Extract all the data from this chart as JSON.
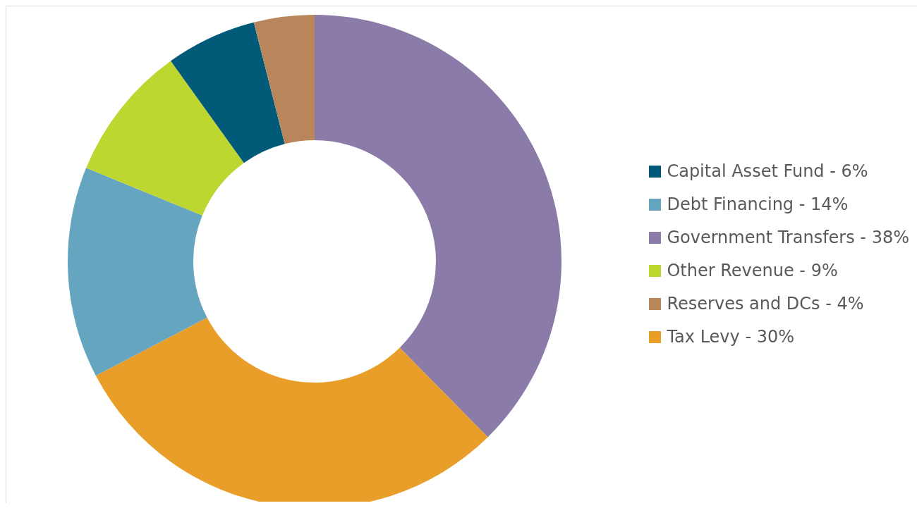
{
  "chart_data": {
    "type": "donut",
    "categories": [
      "Government Transfers - 38%",
      "Tax Levy - 30%",
      "Debt Financing - 14%",
      "Other Revenue - 9%",
      "Capital Asset Fund - 6%",
      "Reserves and DCs - 4%"
    ],
    "values": [
      38,
      30,
      14,
      9,
      6,
      4
    ],
    "colors": [
      "#8b7ba8",
      "#e99e2a",
      "#66a5bf",
      "#bed630",
      "#005a78",
      "#b8865a"
    ],
    "legend": "right"
  }
}
